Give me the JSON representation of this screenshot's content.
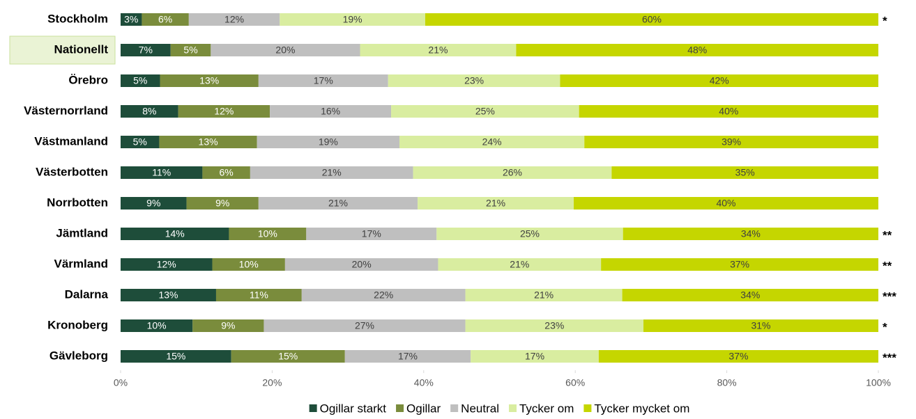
{
  "chart_data": {
    "type": "stacked-bar-horizontal",
    "categories": [
      "Stockholm",
      "Nationellt",
      "Örebro",
      "Västernorrland",
      "Västmanland",
      "Västerbotten",
      "Norrbotten",
      "Jämtland",
      "Värmland",
      "Dalarna",
      "Kronoberg",
      "Gävleborg"
    ],
    "highlight_index": 1,
    "annotations": [
      "*",
      null,
      null,
      null,
      null,
      null,
      null,
      "**",
      "**",
      "***",
      "*",
      "***"
    ],
    "series": [
      {
        "name": "Ogillar starkt",
        "color": "#1e4d3a",
        "label_color": "#ffffff",
        "values": [
          2.8,
          6.6,
          5.2,
          7.6,
          5.1,
          10.8,
          8.7,
          14.3,
          12.1,
          12.6,
          9.5,
          14.6
        ],
        "value_labels": [
          "3%",
          "7%",
          "5%",
          "8%",
          "5%",
          "11%",
          "9%",
          "14%",
          "12%",
          "13%",
          "10%",
          "15%"
        ]
      },
      {
        "name": "Ogillar",
        "color": "#7a8c3c",
        "label_color": "#ffffff",
        "values": [
          6.2,
          5.3,
          13.0,
          12.1,
          12.9,
          6.3,
          9.5,
          10.2,
          9.6,
          11.3,
          9.4,
          15.0
        ],
        "value_labels": [
          "6%",
          "5%",
          "13%",
          "12%",
          "13%",
          "6%",
          "9%",
          "10%",
          "10%",
          "11%",
          "9%",
          "15%"
        ]
      },
      {
        "name": "Neutral",
        "color": "#bfbfbf",
        "label_color": "#404040",
        "values": [
          12.0,
          19.7,
          17.1,
          16.0,
          18.8,
          21.5,
          21.0,
          17.2,
          20.2,
          21.6,
          26.6,
          16.6
        ],
        "value_labels": [
          "12%",
          "20%",
          "17%",
          "16%",
          "19%",
          "21%",
          "21%",
          "17%",
          "20%",
          "22%",
          "27%",
          "17%"
        ]
      },
      {
        "name": "Tycker om",
        "color": "#d9eda0",
        "label_color": "#404040",
        "values": [
          19.2,
          20.6,
          22.7,
          24.8,
          24.4,
          26.2,
          20.6,
          24.6,
          21.5,
          20.7,
          23.5,
          16.9
        ],
        "value_labels": [
          "19%",
          "21%",
          "23%",
          "25%",
          "24%",
          "26%",
          "21%",
          "25%",
          "21%",
          "21%",
          "23%",
          "17%"
        ]
      },
      {
        "name": "Tycker mycket om",
        "color": "#c5d600",
        "label_color": "#404040",
        "values": [
          59.8,
          47.8,
          42.0,
          39.5,
          38.8,
          35.2,
          40.2,
          33.7,
          36.6,
          33.8,
          31.0,
          36.9
        ],
        "value_labels": [
          "60%",
          "48%",
          "42%",
          "40%",
          "39%",
          "35%",
          "40%",
          "34%",
          "37%",
          "34%",
          "31%",
          "37%"
        ]
      }
    ],
    "xlim": [
      0,
      100
    ],
    "xticks": [
      {
        "value": 0,
        "label": "0%"
      },
      {
        "value": 20,
        "label": "20%"
      },
      {
        "value": 40,
        "label": "40%"
      },
      {
        "value": 60,
        "label": "60%"
      },
      {
        "value": 80,
        "label": "80%"
      },
      {
        "value": 100,
        "label": "100%"
      }
    ],
    "legend": "bottom"
  }
}
